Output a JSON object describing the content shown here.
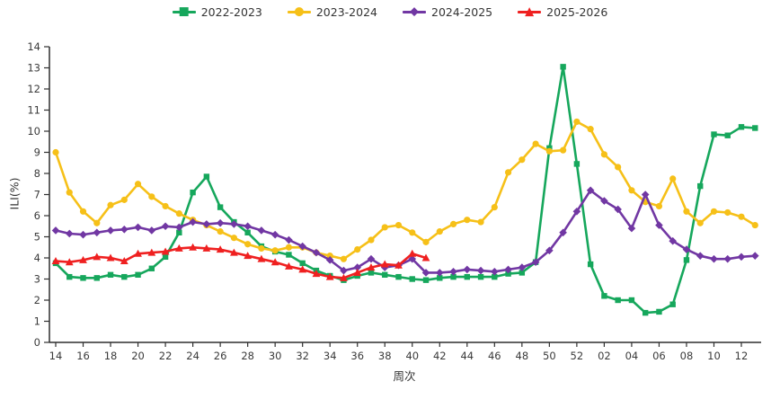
{
  "chart_data": {
    "type": "line",
    "title": "",
    "xlabel": "周次",
    "ylabel": "ILI(%)",
    "ylim": [
      0,
      14
    ],
    "y_ticks": [
      0,
      1,
      2,
      3,
      4,
      5,
      6,
      7,
      8,
      9,
      10,
      11,
      12,
      13,
      14
    ],
    "grid": false,
    "legend_position": "top",
    "x": [
      "14",
      "15",
      "16",
      "17",
      "18",
      "19",
      "20",
      "21",
      "22",
      "23",
      "24",
      "25",
      "26",
      "27",
      "28",
      "29",
      "30",
      "31",
      "32",
      "33",
      "34",
      "35",
      "36",
      "37",
      "38",
      "39",
      "40",
      "41",
      "42",
      "43",
      "44",
      "45",
      "46",
      "47",
      "48",
      "49",
      "50",
      "51",
      "52",
      "01",
      "02",
      "03",
      "04",
      "05",
      "06",
      "07",
      "08",
      "09",
      "10",
      "11",
      "12",
      "13"
    ],
    "x_tick_labels": [
      "14",
      "16",
      "18",
      "20",
      "22",
      "24",
      "26",
      "28",
      "30",
      "32",
      "34",
      "36",
      "38",
      "40",
      "42",
      "44",
      "46",
      "48",
      "50",
      "52",
      "02",
      "04",
      "06",
      "08",
      "10",
      "12"
    ],
    "series": [
      {
        "name": "2022-2023",
        "color": "#16A75C",
        "marker": "square",
        "values": [
          3.75,
          3.1,
          3.05,
          3.05,
          3.2,
          3.1,
          3.2,
          3.5,
          4.05,
          5.2,
          7.1,
          7.85,
          6.4,
          5.7,
          5.2,
          4.55,
          4.3,
          4.15,
          3.75,
          3.4,
          3.15,
          2.95,
          3.15,
          3.3,
          3.2,
          3.1,
          3.0,
          2.95,
          3.05,
          3.1,
          3.1,
          3.1,
          3.1,
          3.25,
          3.3,
          3.8,
          9.2,
          13.05,
          8.45,
          3.7,
          2.2,
          2.0,
          2.0,
          1.4,
          1.45,
          1.8,
          3.9,
          7.4,
          9.85,
          9.8,
          10.2,
          10.15
        ]
      },
      {
        "name": "2023-2024",
        "color": "#F6C018",
        "marker": "circle",
        "values": [
          9.0,
          7.1,
          6.2,
          5.65,
          6.5,
          6.75,
          7.5,
          6.9,
          6.45,
          6.1,
          5.8,
          5.55,
          5.25,
          4.95,
          4.65,
          4.45,
          4.35,
          4.5,
          4.5,
          4.25,
          4.1,
          3.95,
          4.4,
          4.85,
          5.45,
          5.55,
          5.2,
          4.75,
          5.25,
          5.6,
          5.8,
          5.7,
          6.4,
          8.05,
          8.65,
          9.4,
          9.05,
          9.1,
          10.45,
          10.1,
          8.9,
          8.3,
          7.2,
          6.65,
          6.45,
          7.75,
          6.2,
          5.65,
          6.2,
          6.15,
          5.95,
          5.55
        ]
      },
      {
        "name": "2024-2025",
        "color": "#7137A3",
        "marker": "diamond",
        "values": [
          5.3,
          5.15,
          5.1,
          5.2,
          5.3,
          5.35,
          5.45,
          5.3,
          5.5,
          5.45,
          5.7,
          5.6,
          5.65,
          5.6,
          5.5,
          5.3,
          5.1,
          4.85,
          4.55,
          4.25,
          3.9,
          3.4,
          3.55,
          3.95,
          3.55,
          3.65,
          3.95,
          3.3,
          3.3,
          3.35,
          3.45,
          3.4,
          3.35,
          3.45,
          3.55,
          3.8,
          4.35,
          5.2,
          6.2,
          7.2,
          6.7,
          6.3,
          5.4,
          7.0,
          5.55,
          4.8,
          4.4,
          4.1,
          3.95,
          3.95,
          4.05,
          4.1
        ]
      },
      {
        "name": "2025-2026",
        "color": "#EF2020",
        "marker": "triangle",
        "values": [
          3.85,
          3.8,
          3.9,
          4.05,
          4.0,
          3.85,
          4.2,
          4.25,
          4.3,
          4.45,
          4.5,
          4.45,
          4.4,
          4.25,
          4.1,
          3.95,
          3.8,
          3.6,
          3.45,
          3.25,
          3.1,
          3.05,
          3.3,
          3.55,
          3.7,
          3.65,
          4.2,
          4.0,
          null,
          null,
          null,
          null,
          null,
          null,
          null,
          null,
          null,
          null,
          null,
          null,
          null,
          null,
          null,
          null,
          null,
          null,
          null,
          null,
          null,
          null,
          null,
          null
        ]
      }
    ]
  }
}
